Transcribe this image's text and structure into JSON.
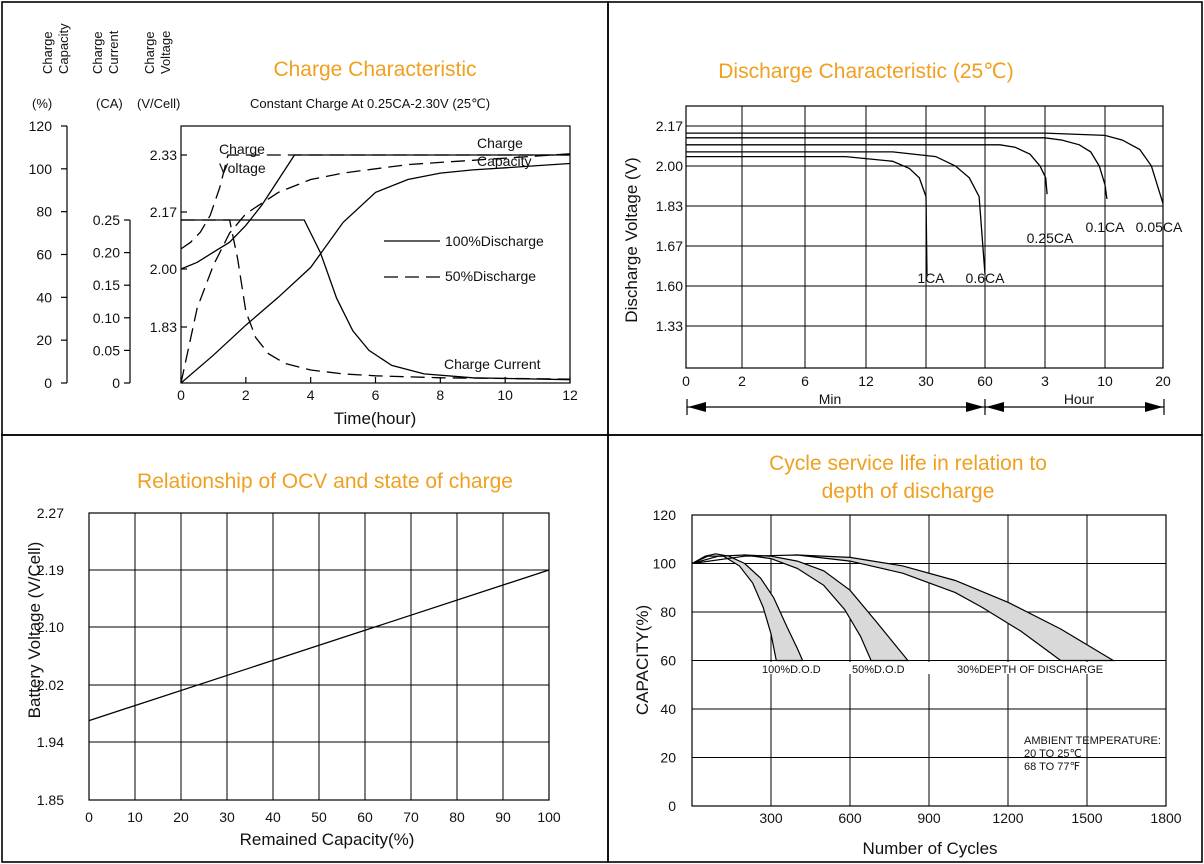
{
  "chart_data": [
    {
      "type": "line",
      "title": "Charge Characteristic",
      "subtitle": "Constant Charge At 0.25CA-2.30V  (25℃)",
      "xlabel": "Time(hour)",
      "x_ticks": [
        "0",
        "2",
        "4",
        "6",
        "8",
        "10",
        "12"
      ],
      "xlim": [
        0,
        12
      ],
      "y_axes": [
        {
          "header": [
            "Charge",
            "Capacity"
          ],
          "unit": "(%)",
          "ticks": [
            "0",
            "20",
            "40",
            "60",
            "80",
            "100",
            "120"
          ]
        },
        {
          "header": [
            "Charge",
            "Current"
          ],
          "unit": "(CA)",
          "ticks": [
            "0",
            "0.05",
            "0.10",
            "0.15",
            "0.20",
            "0.25"
          ]
        },
        {
          "header": [
            "Charge",
            "Voltage"
          ],
          "unit": "(V/Cell)",
          "ticks": [
            "1.83",
            "2.00",
            "2.17",
            "2.33"
          ]
        }
      ],
      "legend": [
        {
          "label": "100%Discharge",
          "style": "solid"
        },
        {
          "label": "50%Discharge",
          "style": "dashed"
        }
      ],
      "annotations": {
        "voltage": [
          "Charge",
          "Voltage"
        ],
        "capacity": [
          "Charge",
          "Capacity"
        ],
        "current": "Charge Current"
      },
      "series": [
        {
          "legend": "100%Discharge",
          "quantity": "capacity",
          "axis": 0,
          "x": [
            0,
            1,
            2,
            3,
            4,
            5,
            6,
            7,
            8,
            9,
            10,
            11,
            12
          ],
          "y": [
            0,
            13,
            27,
            40,
            54,
            75,
            89,
            95,
            98,
            99.5,
            100.5,
            101.5,
            102.5
          ]
        },
        {
          "legend": "50%Discharge",
          "quantity": "capacity",
          "axis": 0,
          "x": [
            0,
            0.5,
            1,
            1.5,
            2,
            3,
            4,
            5,
            6,
            7,
            8,
            9,
            10,
            11,
            12
          ],
          "y": [
            0,
            35,
            55,
            70,
            79,
            89,
            95,
            98,
            100,
            102,
            103,
            104,
            105,
            106,
            107
          ]
        },
        {
          "legend": "100%Discharge",
          "quantity": "current",
          "axis": 1,
          "x": [
            0,
            3.8,
            4.3,
            4.8,
            5.3,
            5.8,
            6.5,
            7.5,
            9,
            12
          ],
          "y": [
            0.25,
            0.25,
            0.2,
            0.13,
            0.08,
            0.05,
            0.027,
            0.014,
            0.008,
            0.005
          ]
        },
        {
          "legend": "50%Discharge",
          "quantity": "current",
          "axis": 1,
          "x": [
            0,
            1.5,
            1.75,
            2,
            2.3,
            2.7,
            3.2,
            4,
            5,
            6,
            8,
            12
          ],
          "y": [
            0.25,
            0.25,
            0.19,
            0.11,
            0.07,
            0.045,
            0.03,
            0.02,
            0.014,
            0.011,
            0.008,
            0.006
          ]
        },
        {
          "legend": "100%Discharge",
          "quantity": "voltage",
          "axis": 2,
          "x": [
            0,
            0.5,
            1,
            1.5,
            2,
            2.5,
            3,
            3.5,
            12
          ],
          "y": [
            2.0,
            2.02,
            2.05,
            2.08,
            2.13,
            2.19,
            2.26,
            2.33,
            2.33
          ]
        },
        {
          "legend": "50%Discharge",
          "quantity": "voltage",
          "axis": 2,
          "x": [
            0,
            0.3,
            0.6,
            0.9,
            1.2,
            1.45,
            12
          ],
          "y": [
            2.06,
            2.08,
            2.11,
            2.16,
            2.24,
            2.33,
            2.33
          ]
        }
      ]
    },
    {
      "type": "line",
      "title": "Discharge Characteristic  (25℃)",
      "ylabel": "Discharge Voltage (V)",
      "y_ticks": [
        "1.33",
        "1.60",
        "1.67",
        "1.83",
        "2.00",
        "2.17"
      ],
      "x_ticks": [
        "0",
        "2",
        "6",
        "12",
        "30",
        "60",
        "3",
        "10",
        "20"
      ],
      "x_groups": [
        {
          "label": "Min"
        },
        {
          "label": "Hour"
        }
      ],
      "grid": true,
      "series": [
        {
          "name": "1CA",
          "time_min": [
            0,
            10,
            20,
            25,
            28,
            30,
            30.5
          ],
          "voltage": [
            2.04,
            2.04,
            2.02,
            1.99,
            1.95,
            1.87,
            1.62
          ]
        },
        {
          "name": "0.6CA",
          "time_min": [
            0,
            20,
            35,
            45,
            52,
            57,
            60
          ],
          "voltage": [
            2.06,
            2.06,
            2.04,
            2.0,
            1.95,
            1.87,
            1.62
          ]
        },
        {
          "name": "0.25CA",
          "time_min": [
            0,
            60,
            90,
            120,
            150,
            170,
            185,
            195
          ],
          "voltage": [
            2.09,
            2.09,
            2.09,
            2.08,
            2.05,
            2.0,
            1.95,
            1.88
          ]
        },
        {
          "name": "0.1CA",
          "time_min": [
            0,
            60,
            180,
            300,
            420,
            500,
            560,
            600,
            620
          ],
          "voltage": [
            2.12,
            2.12,
            2.12,
            2.11,
            2.09,
            2.06,
            2.0,
            1.92,
            1.86
          ]
        },
        {
          "name": "0.05CA",
          "time_min": [
            0,
            60,
            180,
            600,
            780,
            960,
            1080,
            1140,
            1200
          ],
          "voltage": [
            2.14,
            2.14,
            2.14,
            2.13,
            2.11,
            2.07,
            2.0,
            1.92,
            1.84
          ]
        }
      ]
    },
    {
      "type": "line",
      "title": "Relationship of OCV and state of charge",
      "xlabel": "Remained Capacity(%)",
      "ylabel": "Battery Voltage (V/Cell)",
      "x_ticks": [
        "0",
        "10",
        "20",
        "30",
        "40",
        "50",
        "60",
        "70",
        "80",
        "90",
        "100"
      ],
      "y_ticks": [
        "1.85",
        "1.94",
        "2.02",
        "2.10",
        "2.19",
        "2.27"
      ],
      "xlim": [
        0,
        100
      ],
      "grid": true,
      "series": [
        {
          "x": [
            0,
            100
          ],
          "y": [
            1.97,
            2.19
          ]
        }
      ]
    },
    {
      "type": "line",
      "title": [
        "Cycle service life in relation to",
        "depth of discharge"
      ],
      "xlabel": "Number of Cycles",
      "ylabel": "CAPACITY(%)",
      "x_ticks": [
        "300",
        "600",
        "900",
        "1200",
        "1500",
        "1800"
      ],
      "y_ticks": [
        "0",
        "20",
        "40",
        "60",
        "80",
        "100",
        "120"
      ],
      "xlim": [
        0,
        1800
      ],
      "ylim": [
        0,
        120
      ],
      "grid": true,
      "bands": [
        {
          "name": "100%D.O.D",
          "upper": {
            "x": [
              0,
              50,
              90,
              140,
              200,
              260,
              310,
              360,
              400,
              420
            ],
            "y": [
              100,
              103,
              104,
              103,
              100,
              94,
              86,
              74,
              65,
              60
            ]
          },
          "lower": {
            "x": [
              0,
              60,
              120,
              180,
              230,
              270,
              300,
              320
            ],
            "y": [
              100,
              103,
              103,
              99,
              92,
              82,
              71,
              60
            ]
          }
        },
        {
          "name": "50%D.O.D",
          "upper": {
            "x": [
              0,
              100,
              200,
              300,
              400,
              500,
              600,
              700,
              760,
              820
            ],
            "y": [
              100,
              103,
              103.5,
              103,
              101,
              97,
              89,
              76,
              68,
              60
            ]
          },
          "lower": {
            "x": [
              0,
              100,
              200,
              300,
              400,
              500,
              580,
              640,
              680
            ],
            "y": [
              100,
              103,
              103.5,
              102,
              98,
              91,
              81,
              70,
              60
            ]
          }
        },
        {
          "name": "30%DEPTH OF DISCHARGE",
          "upper": {
            "x": [
              0,
              200,
              400,
              600,
              800,
              1000,
              1200,
              1400,
              1600
            ],
            "y": [
              100,
              103,
              103.5,
              102.5,
              99,
              93,
              84,
              73,
              60
            ]
          },
          "lower": {
            "x": [
              0,
              200,
              400,
              600,
              800,
              1000,
              1100,
              1250,
              1400
            ],
            "y": [
              100,
              103,
              103.5,
              101,
              96,
              88,
              82,
              72,
              60
            ]
          }
        }
      ],
      "note": [
        "AMBIENT TEMPERATURE:",
        "20 TO 25℃",
        "68 TO 77℉"
      ]
    }
  ]
}
